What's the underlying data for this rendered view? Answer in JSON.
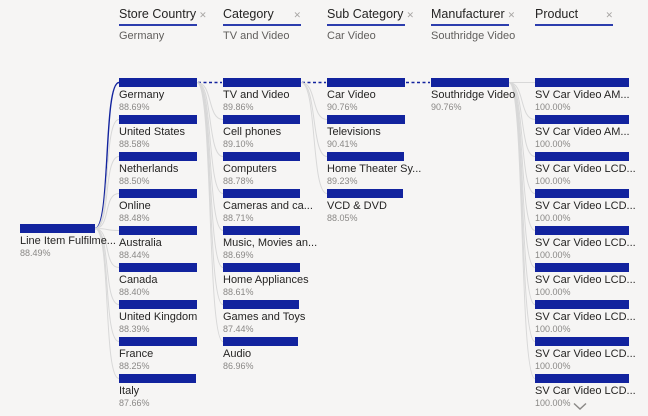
{
  "colors": {
    "bar": "#12239E",
    "header_underline": "#2c3dad",
    "selected_path": "#12239E",
    "connector_gray": "#d8d8d8",
    "background": "#f6f5f4"
  },
  "icons": {
    "close_glyph": "✕",
    "chevron_down": "v"
  },
  "visual": {
    "root": {
      "label": "Line Item Fulfilme...",
      "pct": "88.49%",
      "value": 88.49
    },
    "levels": [
      {
        "title": "Store Country",
        "selected_value": "Germany",
        "nodes": [
          {
            "label": "Germany",
            "pct": "88.69%",
            "value": 88.69,
            "selected": true
          },
          {
            "label": "United States",
            "pct": "88.58%",
            "value": 88.58
          },
          {
            "label": "Netherlands",
            "pct": "88.50%",
            "value": 88.5
          },
          {
            "label": "Online",
            "pct": "88.48%",
            "value": 88.48
          },
          {
            "label": "Australia",
            "pct": "88.44%",
            "value": 88.44
          },
          {
            "label": "Canada",
            "pct": "88.40%",
            "value": 88.4
          },
          {
            "label": "United Kingdom",
            "pct": "88.39%",
            "value": 88.39
          },
          {
            "label": "France",
            "pct": "88.25%",
            "value": 88.25
          },
          {
            "label": "Italy",
            "pct": "87.66%",
            "value": 87.66
          }
        ]
      },
      {
        "title": "Category",
        "selected_value": "TV and Video",
        "nodes": [
          {
            "label": "TV and Video",
            "pct": "89.86%",
            "value": 89.86,
            "selected": true
          },
          {
            "label": "Cell phones",
            "pct": "89.10%",
            "value": 89.1
          },
          {
            "label": "Computers",
            "pct": "88.78%",
            "value": 88.78
          },
          {
            "label": "Cameras and ca...",
            "pct": "88.71%",
            "value": 88.71
          },
          {
            "label": "Music, Movies an...",
            "pct": "88.69%",
            "value": 88.69
          },
          {
            "label": "Home Appliances",
            "pct": "88.61%",
            "value": 88.61
          },
          {
            "label": "Games and Toys",
            "pct": "87.44%",
            "value": 87.44
          },
          {
            "label": "Audio",
            "pct": "86.96%",
            "value": 86.96
          }
        ]
      },
      {
        "title": "Sub Category",
        "selected_value": "Car Video",
        "nodes": [
          {
            "label": "Car Video",
            "pct": "90.76%",
            "value": 90.76,
            "selected": true
          },
          {
            "label": "Televisions",
            "pct": "90.41%",
            "value": 90.41
          },
          {
            "label": "Home Theater Sy...",
            "pct": "89.23%",
            "value": 89.23
          },
          {
            "label": "VCD & DVD",
            "pct": "88.05%",
            "value": 88.05
          }
        ]
      },
      {
        "title": "Manufacturer",
        "selected_value": "Southridge Video",
        "nodes": [
          {
            "label": "Southridge Video",
            "pct": "90.76%",
            "value": 90.76,
            "selected": true
          }
        ]
      },
      {
        "title": "Product",
        "selected_value": "",
        "nodes": [
          {
            "label": "SV Car Video AM...",
            "pct": "100.00%",
            "value": 100.0
          },
          {
            "label": "SV Car Video AM...",
            "pct": "100.00%",
            "value": 100.0
          },
          {
            "label": "SV Car Video LCD...",
            "pct": "100.00%",
            "value": 100.0
          },
          {
            "label": "SV Car Video LCD...",
            "pct": "100.00%",
            "value": 100.0
          },
          {
            "label": "SV Car Video LCD...",
            "pct": "100.00%",
            "value": 100.0
          },
          {
            "label": "SV Car Video LCD...",
            "pct": "100.00%",
            "value": 100.0
          },
          {
            "label": "SV Car Video LCD...",
            "pct": "100.00%",
            "value": 100.0
          },
          {
            "label": "SV Car Video LCD...",
            "pct": "100.00%",
            "value": 100.0
          },
          {
            "label": "SV Car Video LCD...",
            "pct": "100.00%",
            "value": 100.0
          }
        ]
      }
    ]
  },
  "chart_data": {
    "type": "decomposition_tree",
    "measure": "Line Item Fulfilme...",
    "root_value_pct": 88.49,
    "selected_path": [
      "Germany",
      "TV and Video",
      "Car Video",
      "Southridge Video"
    ],
    "levels": [
      {
        "field": "Store Country",
        "selected": "Germany",
        "categories": [
          "Germany",
          "United States",
          "Netherlands",
          "Online",
          "Australia",
          "Canada",
          "United Kingdom",
          "France",
          "Italy"
        ],
        "values": [
          88.69,
          88.58,
          88.5,
          88.48,
          88.44,
          88.4,
          88.39,
          88.25,
          87.66
        ]
      },
      {
        "field": "Category",
        "selected": "TV and Video",
        "categories": [
          "TV and Video",
          "Cell phones",
          "Computers",
          "Cameras and ca...",
          "Music, Movies an...",
          "Home Appliances",
          "Games and Toys",
          "Audio"
        ],
        "values": [
          89.86,
          89.1,
          88.78,
          88.71,
          88.69,
          88.61,
          87.44,
          86.96
        ]
      },
      {
        "field": "Sub Category",
        "selected": "Car Video",
        "categories": [
          "Car Video",
          "Televisions",
          "Home Theater Sy...",
          "VCD & DVD"
        ],
        "values": [
          90.76,
          90.41,
          89.23,
          88.05
        ]
      },
      {
        "field": "Manufacturer",
        "selected": "Southridge Video",
        "categories": [
          "Southridge Video"
        ],
        "values": [
          90.76
        ]
      },
      {
        "field": "Product",
        "selected": null,
        "categories": [
          "SV Car Video AM...",
          "SV Car Video AM...",
          "SV Car Video LCD...",
          "SV Car Video LCD...",
          "SV Car Video LCD...",
          "SV Car Video LCD...",
          "SV Car Video LCD...",
          "SV Car Video LCD...",
          "SV Car Video LCD..."
        ],
        "values": [
          100.0,
          100.0,
          100.0,
          100.0,
          100.0,
          100.0,
          100.0,
          100.0,
          100.0
        ]
      }
    ]
  }
}
